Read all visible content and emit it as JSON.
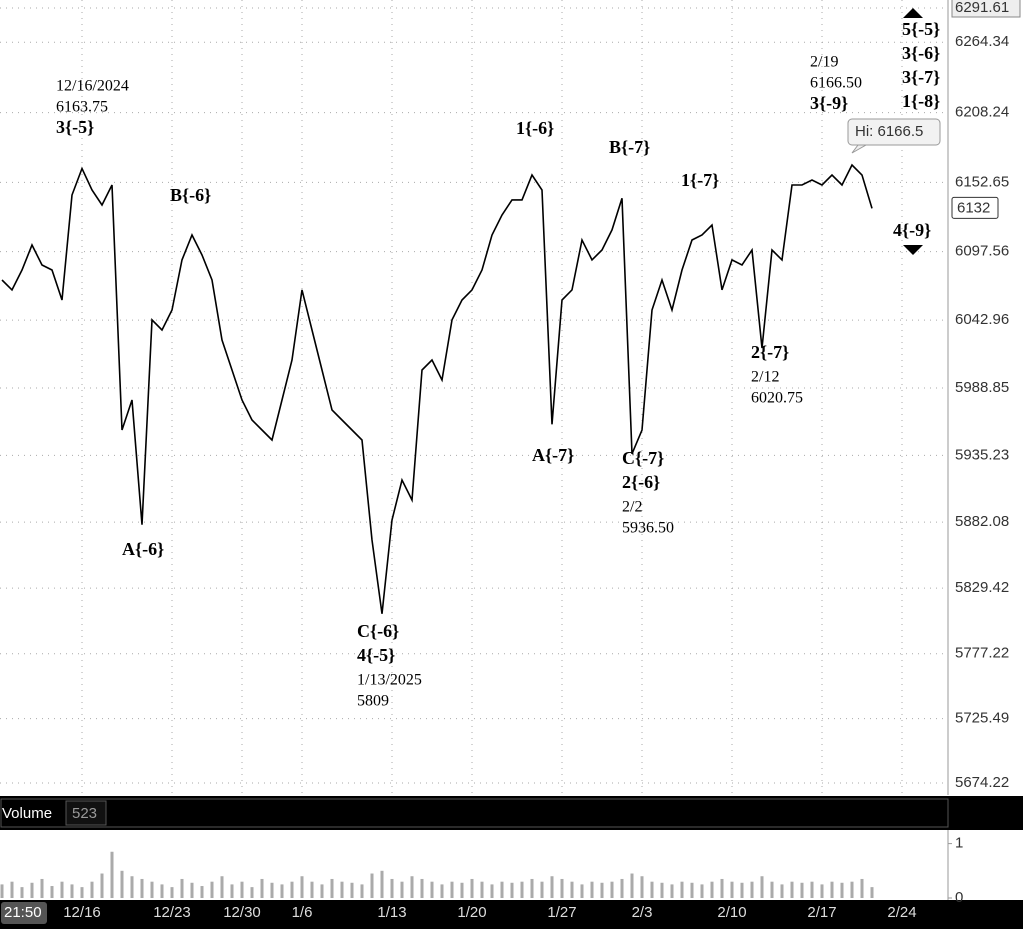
{
  "chart_data": {
    "type": "line",
    "color": "#000000",
    "grid": true,
    "categories": [
      null,
      null,
      null,
      null,
      null,
      null,
      null,
      null,
      "12/16",
      null,
      null,
      null,
      null,
      null,
      null,
      null,
      null,
      "12/23",
      null,
      null,
      null,
      null,
      null,
      null,
      "12/30",
      null,
      null,
      null,
      null,
      null,
      "1/6",
      null,
      null,
      null,
      null,
      null,
      null,
      null,
      null,
      "1/13",
      null,
      null,
      null,
      null,
      null,
      null,
      null,
      "1/20",
      null,
      null,
      null,
      null,
      null,
      null,
      null,
      null,
      "1/27",
      null,
      null,
      null,
      null,
      null,
      null,
      null,
      "2/3",
      null,
      null,
      null,
      null,
      null,
      null,
      null,
      null,
      "2/10",
      null,
      null,
      null,
      null,
      null,
      null,
      null,
      null,
      "2/17",
      null,
      null,
      null,
      null,
      null,
      null,
      null,
      "2/24",
      null,
      null,
      null,
      null
    ],
    "values": [
      6074.9,
      6067.0,
      6082.9,
      6102.8,
      6086.9,
      6082.9,
      6059.0,
      6142.6,
      6163.75,
      6146.6,
      6134.7,
      6150.6,
      5955.4,
      5979.3,
      5880.0,
      6043.1,
      6035.1,
      6051.0,
      6090.9,
      6110.8,
      6094.8,
      6074.9,
      6027.1,
      6003.2,
      5979.3,
      5963.4,
      5955.4,
      5947.5,
      5979.3,
      6011.2,
      6067.0,
      6035.1,
      6003.2,
      5971.4,
      5963.4,
      5955.4,
      5947.5,
      5867.8,
      5809,
      5883.7,
      5915.6,
      5899.7,
      6003.2,
      6011.2,
      5995.3,
      6043.1,
      6059.0,
      6067.0,
      6082.9,
      6110.8,
      6126.7,
      6138.7,
      6138.7,
      6158.6,
      6146.6,
      5960.0,
      6059.0,
      6067.0,
      6106.8,
      6090.9,
      6098.8,
      6114.8,
      6140.0,
      5936.5,
      5955.4,
      6051.0,
      6074.9,
      6051.0,
      6082.9,
      6106.8,
      6110.8,
      6118.7,
      6067.0,
      6090.9,
      6086.9,
      6098.8,
      6020.75,
      6098.8,
      6090.9,
      6150.6,
      6150.6,
      6154.6,
      6150.6,
      6158.6,
      6150.6,
      6166.5,
      6158.6,
      6132,
      null,
      null,
      null,
      null,
      null,
      null,
      null
    ],
    "ylim": [
      5664.66,
      6297.98
    ],
    "yticks": [
      5674.22,
      5725.49,
      5777.22,
      5829.42,
      5882.08,
      5935.23,
      5988.85,
      6042.96,
      6097.56,
      6152.65,
      6208.24,
      6264.34,
      6291.61
    ],
    "last_price": 6132,
    "high_label": "Hi: 6166.5",
    "time_label": "21:50",
    "annotations": [
      [
        "12/16/2024",
        "6163.75",
        "3{-5}"
      ],
      [
        "B{-6}"
      ],
      [
        "A{-6}"
      ],
      [
        "C{-6}",
        "4{-5}",
        "1/13/2025",
        "5809"
      ],
      [
        "1{-6}"
      ],
      [
        "A{-7}"
      ],
      [
        "B{-7}"
      ],
      [
        "C{-7}",
        "2{-6}",
        "2/2",
        "5936.50"
      ],
      [
        "1{-7}"
      ],
      [
        "2{-7}",
        "2/12",
        "6020.75"
      ],
      [
        "2/19",
        "6166.50",
        "3{-9}"
      ],
      [
        "5{-5}",
        "3{-6}",
        "3{-7}",
        "1{-8}"
      ],
      [
        "4{-9}"
      ]
    ],
    "volume": {
      "label": "Volume",
      "last_value": 523,
      "color": "#aaaaaa",
      "ylim": [
        0,
        1.25
      ],
      "yticks": [
        0,
        1
      ],
      "values": [
        0.25,
        0.3,
        0.2,
        0.28,
        0.35,
        0.22,
        0.3,
        0.25,
        0.2,
        0.3,
        0.45,
        0.85,
        0.5,
        0.4,
        0.35,
        0.3,
        0.25,
        0.2,
        0.35,
        0.28,
        0.22,
        0.3,
        0.4,
        0.25,
        0.3,
        0.2,
        0.35,
        0.28,
        0.25,
        0.3,
        0.4,
        0.3,
        0.25,
        0.35,
        0.3,
        0.28,
        0.25,
        0.45,
        0.5,
        0.35,
        0.3,
        0.4,
        0.35,
        0.3,
        0.25,
        0.3,
        0.28,
        0.35,
        0.3,
        0.25,
        0.3,
        0.28,
        0.3,
        0.35,
        0.3,
        0.4,
        0.35,
        0.3,
        0.25,
        0.3,
        0.28,
        0.3,
        0.35,
        0.45,
        0.4,
        0.3,
        0.28,
        0.25,
        0.3,
        0.28,
        0.25,
        0.3,
        0.35,
        0.3,
        0.28,
        0.3,
        0.4,
        0.3,
        0.25,
        0.3,
        0.28,
        0.3,
        0.25,
        0.3,
        0.28,
        0.3,
        0.35,
        0.2,
        null,
        null,
        null,
        null,
        null,
        null,
        null
      ]
    }
  }
}
